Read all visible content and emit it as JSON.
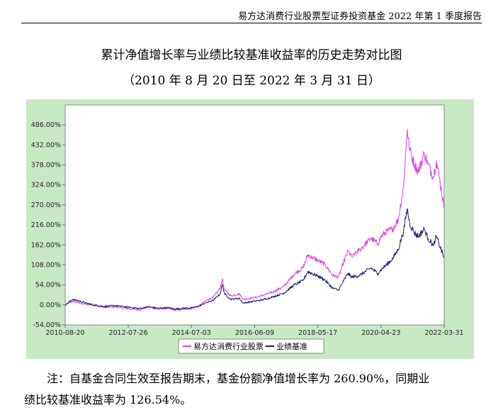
{
  "header": {
    "text": "易方达消费行业股票型证券投资基金 2022 年第 1 季度报告"
  },
  "chart_data": {
    "type": "line",
    "title": "累计净值增长率与业绩比较基准收益率的历史走势对比图",
    "subtitle": "（2010 年 8 月 20 日至 2022 年 3 月 31 日）",
    "xlabel": "",
    "ylabel": "",
    "x_ticks": [
      "2010-08-20",
      "2012-07-26",
      "2014-07-03",
      "2016-06-09",
      "2018-05-17",
      "2020-04-23",
      "2022-03-31"
    ],
    "y_ticks": [
      "-54.00%",
      "0.00%",
      "54.00%",
      "108.00%",
      "162.00%",
      "216.00%",
      "270.00%",
      "324.00%",
      "378.00%",
      "432.00%",
      "486.00%"
    ],
    "ylim": [
      -54,
      540
    ],
    "xlim": [
      "2010-08-20",
      "2022-03-31"
    ],
    "grid": false,
    "legend_position": "bottom",
    "colors": {
      "background": "#c9e8c6",
      "plot": "#ffffff",
      "fund": "#e040e8",
      "benchmark": "#1e1e7a"
    },
    "series": [
      {
        "name": "易方达消费行业股票",
        "x": [
          "2010-08-20",
          "2010-11-10",
          "2011-03-01",
          "2011-07-01",
          "2011-11-01",
          "2012-03-01",
          "2012-07-26",
          "2012-12-01",
          "2013-03-01",
          "2013-07-01",
          "2013-10-01",
          "2014-01-01",
          "2014-04-01",
          "2014-07-03",
          "2014-10-01",
          "2014-12-01",
          "2015-03-01",
          "2015-05-20",
          "2015-06-12",
          "2015-07-09",
          "2015-09-15",
          "2015-12-20",
          "2016-02-01",
          "2016-06-09",
          "2016-10-01",
          "2017-01-01",
          "2017-05-01",
          "2017-09-01",
          "2017-12-01",
          "2018-01-25",
          "2018-05-17",
          "2018-08-01",
          "2018-10-30",
          "2019-01-03",
          "2019-03-01",
          "2019-04-19",
          "2019-06-01",
          "2019-09-01",
          "2019-12-31",
          "2020-03-19",
          "2020-04-23",
          "2020-07-01",
          "2020-09-01",
          "2020-11-01",
          "2021-01-01",
          "2021-02-10",
          "2021-03-10",
          "2021-05-01",
          "2021-06-15",
          "2021-08-20",
          "2021-10-01",
          "2021-12-01",
          "2022-01-01",
          "2022-02-01",
          "2022-03-31"
        ],
        "values": [
          0,
          10,
          3,
          0,
          -7,
          -5,
          -10,
          -13,
          -5,
          -12,
          -9,
          -14,
          -12,
          -10,
          -2,
          10,
          20,
          45,
          70,
          40,
          25,
          30,
          15,
          20,
          28,
          35,
          50,
          85,
          100,
          135,
          120,
          110,
          80,
          75,
          115,
          145,
          130,
          150,
          180,
          165,
          185,
          200,
          205,
          230,
          320,
          475,
          420,
          380,
          360,
          410,
          380,
          345,
          390,
          350,
          260.9
        ]
      },
      {
        "name": "业绩基准",
        "x": [
          "2010-08-20",
          "2010-11-10",
          "2011-03-01",
          "2011-07-01",
          "2011-11-01",
          "2012-03-01",
          "2012-07-26",
          "2012-12-01",
          "2013-03-01",
          "2013-07-01",
          "2013-10-01",
          "2014-01-01",
          "2014-04-01",
          "2014-07-03",
          "2014-10-01",
          "2014-12-01",
          "2015-03-01",
          "2015-05-20",
          "2015-06-12",
          "2015-07-09",
          "2015-09-15",
          "2015-12-20",
          "2016-02-01",
          "2016-06-09",
          "2016-10-01",
          "2017-01-01",
          "2017-05-01",
          "2017-09-01",
          "2017-12-01",
          "2018-01-25",
          "2018-05-17",
          "2018-08-01",
          "2018-10-30",
          "2019-01-03",
          "2019-03-01",
          "2019-04-19",
          "2019-06-01",
          "2019-09-01",
          "2019-12-31",
          "2020-03-19",
          "2020-04-23",
          "2020-07-01",
          "2020-09-01",
          "2020-11-01",
          "2021-01-01",
          "2021-02-10",
          "2021-03-10",
          "2021-05-01",
          "2021-06-15",
          "2021-08-20",
          "2021-10-01",
          "2021-12-01",
          "2022-01-01",
          "2022-02-01",
          "2022-03-31"
        ],
        "values": [
          0,
          15,
          8,
          0,
          -4,
          -2,
          -6,
          -10,
          -5,
          -9,
          -7,
          -11,
          -9,
          -8,
          -3,
          5,
          12,
          30,
          55,
          30,
          15,
          18,
          5,
          10,
          15,
          22,
          32,
          55,
          65,
          90,
          78,
          68,
          45,
          40,
          65,
          85,
          75,
          80,
          100,
          85,
          95,
          110,
          125,
          150,
          200,
          260,
          220,
          195,
          185,
          205,
          180,
          160,
          185,
          165,
          126.54
        ]
      }
    ]
  },
  "note": {
    "line1": "注：自基金合同生效至报告期末，基金份额净值增长率为 260.90%，同期业",
    "line2": "绩比较基准收益率为 126.54%。"
  }
}
